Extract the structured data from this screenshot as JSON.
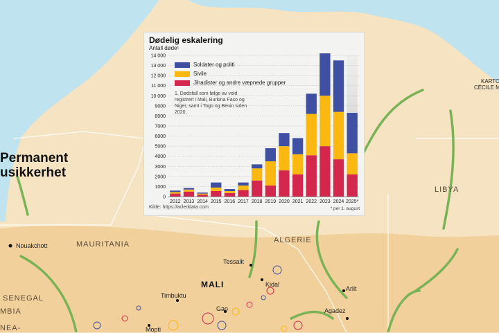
{
  "map": {
    "headline": [
      "Permanent",
      "usikkerhet"
    ],
    "countries": [
      "MAURITANIA",
      "MALI",
      "ALGERIE",
      "LIBYA",
      "SENEGAL"
    ],
    "edge_labels": [
      "MBIA",
      "NEA-"
    ],
    "cities": [
      "Nouakchott",
      "Tessalit",
      "Kidal",
      "Timbuktu",
      "Gao",
      "Mopti",
      "Arlit",
      "Agadez"
    ],
    "credit": [
      "KARTOG",
      "CÉCILE M"
    ],
    "colors": {
      "land": "#f6e3c2",
      "sahel": "#f2d09c",
      "sea": "#bfe3ef",
      "arrow": "#7ab356"
    }
  },
  "chart_data": {
    "type": "bar",
    "stacked": true,
    "title": "Dødelig eskalering",
    "ylabel": "Antall døde¹",
    "categories": [
      "2012",
      "2013",
      "2014",
      "2015",
      "2016",
      "2017",
      "2018",
      "2019",
      "2020",
      "2021",
      "2022",
      "2023",
      "2024",
      "2025*"
    ],
    "series": [
      {
        "name": "Jihadister og andre væpnede grupper",
        "color": "#d3274d",
        "values": [
          300,
          500,
          200,
          550,
          350,
          650,
          1600,
          1100,
          2600,
          2200,
          4100,
          5000,
          3700,
          2200
        ]
      },
      {
        "name": "Sivile",
        "color": "#fbb811",
        "values": [
          150,
          200,
          100,
          350,
          200,
          450,
          1200,
          2400,
          2400,
          2000,
          4100,
          5000,
          4700,
          2100
        ]
      },
      {
        "name": "Soldater og politi",
        "color": "#3f4fa2",
        "values": [
          150,
          150,
          100,
          500,
          200,
          300,
          400,
          1300,
          1300,
          1600,
          2000,
          4200,
          5100,
          4000
        ]
      }
    ],
    "projection_total": 14000,
    "ylim": [
      0,
      14000
    ],
    "yticks": [
      "0",
      "1000",
      "2000",
      "3000",
      "4000",
      "5000",
      "6000",
      "7000",
      "8000",
      "9000",
      "10 000",
      "11 000",
      "12 000",
      "13 000",
      "14 000"
    ],
    "legend_order": [
      "Soldater og politi",
      "Sivile",
      "Jihadister og andre væpnede grupper"
    ],
    "footnote": "1. Dødsfall som følge av vold registrert i Mali, Burkina Faso og Niger, samt i Togo og Benin siden 2020.",
    "source": "Kilde: https://acleddata.com",
    "asof": "* per 1. august"
  }
}
